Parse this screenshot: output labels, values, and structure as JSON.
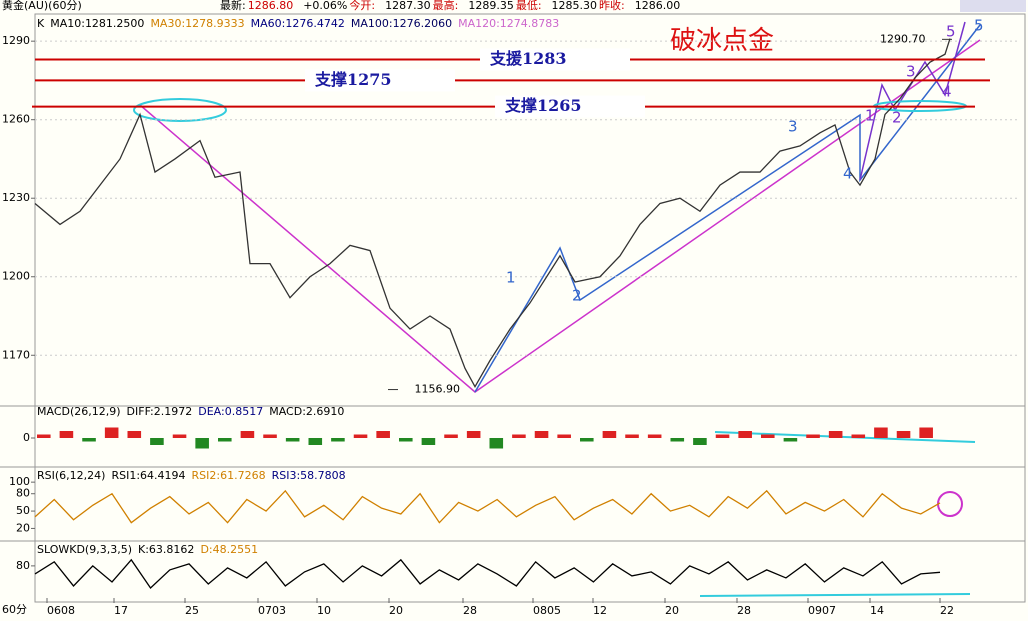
{
  "header": {
    "instrument": "黄金(AU)(60分)",
    "quote": [
      "最新:",
      "1286.80",
      "+0.06%",
      "今开:",
      "1287.30",
      "最高:",
      "1289.35",
      "最低:",
      "1285.30",
      "昨收:",
      "1286.00"
    ]
  },
  "chart_data": [
    {
      "type": "line",
      "legend": [
        {
          "text": "K",
          "color": "#000000"
        },
        {
          "text": "MA10:1281.2500",
          "color": "#000000"
        },
        {
          "text": "MA30:1278.9333",
          "color": "#d08000"
        },
        {
          "text": "MA60:1276.4742",
          "color": "#000080"
        },
        {
          "text": "MA100:1276.2060",
          "color": "#000060"
        },
        {
          "text": "MA120:1274.8783",
          "color": "#cc66cc"
        }
      ],
      "title": "破冰点金",
      "x": [
        0,
        2.5,
        4.5,
        6.5,
        8.5,
        10.5,
        12,
        14,
        16.5,
        18,
        20.5,
        21.5,
        23.5,
        25.5,
        27.5,
        29.5,
        31.5,
        33.5,
        35.5,
        37.5,
        39.5,
        41.5,
        43,
        44,
        45.5,
        47.5,
        49.5,
        51.5,
        52.5,
        54,
        56.5,
        58.5,
        60.5,
        62.5,
        64.5,
        66.5,
        68.5,
        70.5,
        72.5,
        74.5,
        76.5,
        78.5,
        80,
        81.5,
        82.5,
        84,
        85,
        86.5,
        88,
        89.5,
        91,
        91.5
      ],
      "series": [
        {
          "color": "#333333",
          "values": [
            1228,
            1220,
            1225,
            1235,
            1245,
            1262,
            1240,
            1245,
            1252,
            1238,
            1240,
            1205,
            1205,
            1192,
            1200,
            1205,
            1212,
            1210,
            1188,
            1180,
            1185,
            1180,
            1165,
            1158,
            1168,
            1180,
            1190,
            1202,
            1208,
            1198,
            1200,
            1208,
            1220,
            1228,
            1230,
            1225,
            1235,
            1240,
            1240,
            1248,
            1250,
            1255,
            1258,
            1240,
            1235,
            1245,
            1262,
            1268,
            1276,
            1282,
            1285,
            1291
          ]
        }
      ],
      "xlim": [
        0,
        96.5
      ],
      "xticks": [
        {
          "value": 1.2,
          "label": "0608"
        },
        {
          "value": 7.9,
          "label": "17"
        },
        {
          "value": 15,
          "label": "25"
        },
        {
          "value": 22.3,
          "label": "0703"
        },
        {
          "value": 28.2,
          "label": "10"
        },
        {
          "value": 35.4,
          "label": "20"
        },
        {
          "value": 42.8,
          "label": "28"
        },
        {
          "value": 49.8,
          "label": "0805"
        },
        {
          "value": 55.8,
          "label": "12"
        },
        {
          "value": 63,
          "label": "20"
        },
        {
          "value": 70.2,
          "label": "28"
        },
        {
          "value": 77.3,
          "label": "0907"
        },
        {
          "value": 83.5,
          "label": "14"
        },
        {
          "value": 90.5,
          "label": "22"
        }
      ],
      "ylim": [
        1151,
        1300
      ],
      "yticks": [
        1170,
        1200,
        1230,
        1260,
        1290
      ],
      "grid": true,
      "levels": [
        {
          "label": "支援1283",
          "value": 1283
        },
        {
          "label": "支撑1275",
          "value": 1275
        },
        {
          "label": "支撑1265",
          "value": 1265
        }
      ],
      "annotations": [
        {
          "label": "1290.70",
          "value": 1290.7
        },
        {
          "label": "1156.90",
          "value": 1156.9
        }
      ],
      "waves": [
        "1",
        "2",
        "3",
        "4",
        "1",
        "2",
        "3",
        "4",
        "5",
        "5"
      ]
    },
    {
      "type": "bar",
      "legend": [
        {
          "text": "MACD(26,12,9)",
          "color": "#000000"
        },
        {
          "text": "DIFF:2.1972",
          "color": "#000000"
        },
        {
          "text": "DEA:0.8517",
          "color": "#000080"
        },
        {
          "text": "MACD:2.6910",
          "color": "#000000"
        }
      ],
      "values": [
        1,
        2,
        -1,
        3,
        2,
        -2,
        1,
        -3,
        -1,
        2,
        1,
        -1,
        -2,
        -1,
        1,
        2,
        -1,
        -2,
        1,
        2,
        -3,
        1,
        2,
        1,
        -1,
        2,
        1,
        1,
        -1,
        -2,
        1,
        2,
        1,
        -1,
        1,
        2,
        1,
        3,
        2,
        3
      ],
      "ylim": [
        -8,
        8
      ],
      "yticks": [
        0
      ]
    },
    {
      "type": "line",
      "legend": [
        {
          "text": "RSI(6,12,24)",
          "color": "#000000"
        },
        {
          "text": "RSI1:64.4194",
          "color": "#000000"
        },
        {
          "text": "RSI2:61.7268",
          "color": "#d08000"
        },
        {
          "text": "RSI3:58.7808",
          "color": "#000080"
        }
      ],
      "series": [
        {
          "color": "#d08000",
          "values": [
            40,
            70,
            35,
            60,
            80,
            30,
            55,
            75,
            45,
            65,
            30,
            70,
            50,
            85,
            40,
            60,
            35,
            75,
            55,
            45,
            80,
            30,
            65,
            50,
            70,
            40,
            60,
            75,
            35,
            55,
            70,
            45,
            80,
            50,
            60,
            40,
            75,
            55,
            85,
            45,
            65,
            50,
            70,
            40,
            80,
            55,
            45,
            64
          ]
        }
      ],
      "ylim": [
        0,
        121
      ],
      "yticks": [
        20,
        50,
        80,
        100
      ]
    },
    {
      "type": "line",
      "legend": [
        {
          "text": "SLOWKD(9,3,3,5)",
          "color": "#000000"
        },
        {
          "text": "K:63.8162",
          "color": "#000000"
        },
        {
          "text": "D:48.2551",
          "color": "#d08000"
        }
      ],
      "series": [
        {
          "color": "#000000",
          "values": [
            60,
            90,
            30,
            80,
            40,
            95,
            25,
            70,
            85,
            35,
            75,
            50,
            90,
            30,
            65,
            85,
            40,
            80,
            55,
            95,
            35,
            70,
            45,
            85,
            60,
            30,
            90,
            50,
            75,
            40,
            85,
            55,
            65,
            35,
            80,
            60,
            90,
            45,
            70,
            50,
            85,
            40,
            75,
            55,
            90,
            35,
            60,
            64
          ]
        }
      ],
      "ylim": [
        0,
        137
      ],
      "yticks": [
        80
      ]
    }
  ],
  "footer": {
    "period": "60分"
  }
}
